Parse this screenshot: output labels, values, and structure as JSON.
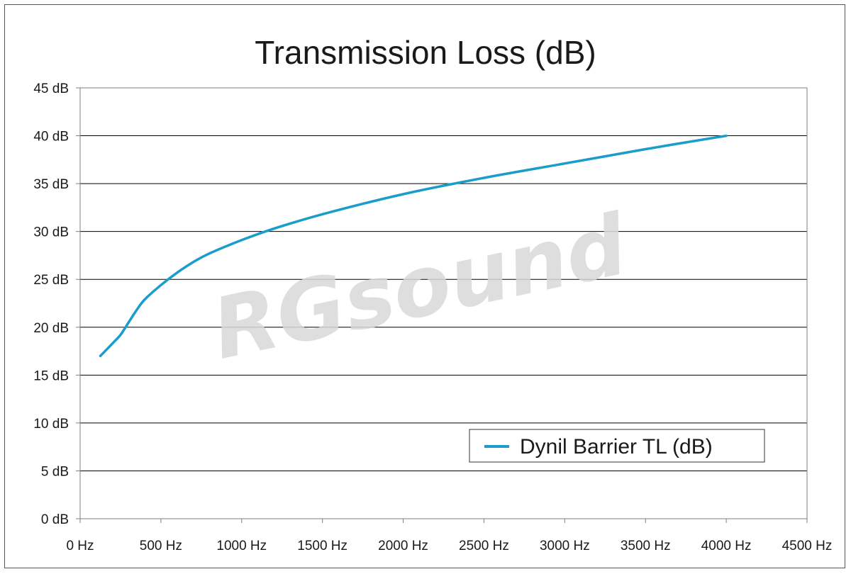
{
  "chart_data": {
    "type": "line",
    "title": "Transmission Loss (dB)",
    "xlabel": "",
    "ylabel": "",
    "xlim": [
      0,
      4500
    ],
    "ylim": [
      0,
      45
    ],
    "x_ticks": [
      0,
      500,
      1000,
      1500,
      2000,
      2500,
      3000,
      3500,
      4000,
      4500
    ],
    "y_ticks": [
      0,
      5,
      10,
      15,
      20,
      25,
      30,
      35,
      40,
      45
    ],
    "x_unit": "Hz",
    "y_unit": "dB",
    "grid": "horizontal",
    "legend_position": "bottom-right",
    "series": [
      {
        "name": "Dynil Barrier TL (dB)",
        "color": "#1a9ccc",
        "x": [
          125,
          200,
          250,
          300,
          350,
          400,
          500,
          600,
          700,
          800,
          1000,
          1200,
          1500,
          2000,
          2500,
          3000,
          3500,
          4000
        ],
        "y": [
          17.0,
          18.3,
          19.2,
          20.5,
          21.8,
          22.9,
          24.4,
          25.7,
          26.8,
          27.7,
          29.1,
          30.3,
          31.8,
          33.9,
          35.6,
          37.1,
          38.6,
          40.0
        ]
      }
    ]
  },
  "watermark": {
    "text": "RGsound"
  }
}
